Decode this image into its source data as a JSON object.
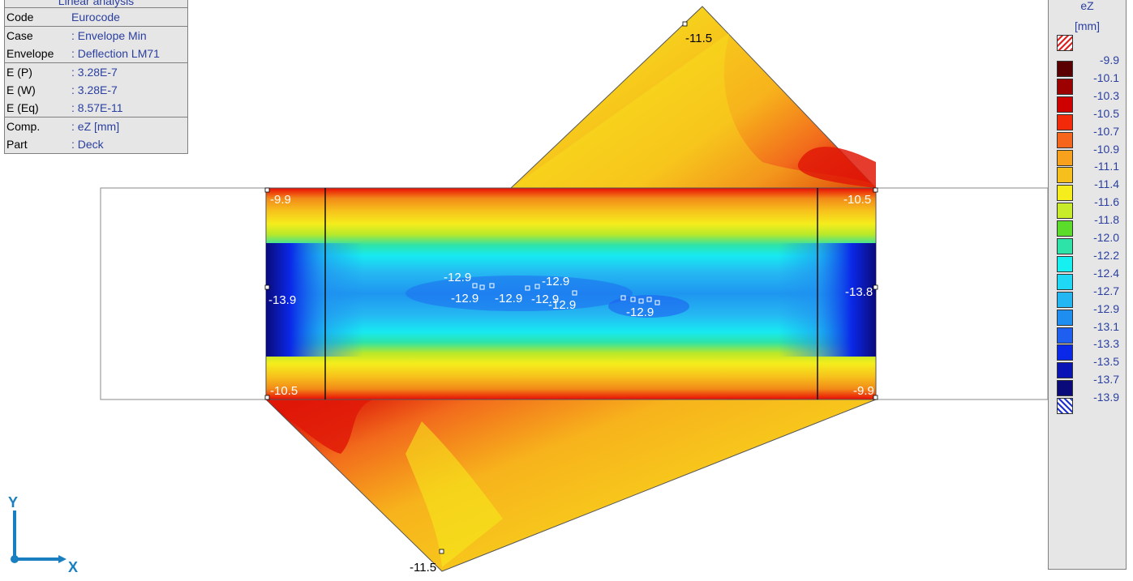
{
  "info_panel": {
    "title": "Linear analysis",
    "rows": [
      {
        "key": "Code",
        "value": "Eurocode"
      },
      {
        "key": "Case",
        "value": ": Envelope Min"
      },
      {
        "key": "Envelope",
        "value": ": Deflection LM71"
      },
      {
        "key": "E (P)",
        "value": ": 3.28E-7"
      },
      {
        "key": "E (W)",
        "value": ": 3.28E-7"
      },
      {
        "key": "E (Eq)",
        "value": ": 8.57E-11"
      },
      {
        "key": "Comp.",
        "value": ": eZ [mm]"
      },
      {
        "key": "Part",
        "value": ": Deck"
      }
    ]
  },
  "legend": {
    "title": "eZ",
    "unit": "[mm]",
    "entries": [
      {
        "value": "-9.9",
        "color": "#5a0000"
      },
      {
        "value": "-10.1",
        "color": "#9c0000"
      },
      {
        "value": "-10.3",
        "color": "#cf0000"
      },
      {
        "value": "-10.5",
        "color": "#f22a0a"
      },
      {
        "value": "-10.7",
        "color": "#f5651c"
      },
      {
        "value": "-10.9",
        "color": "#f7a11c"
      },
      {
        "value": "-11.1",
        "color": "#f7bf1c"
      },
      {
        "value": "-11.4",
        "color": "#f5ed1c"
      },
      {
        "value": "-11.6",
        "color": "#c8ec2a"
      },
      {
        "value": "-11.8",
        "color": "#5cdc2a"
      },
      {
        "value": "-12.0",
        "color": "#2ee3a8"
      },
      {
        "value": "-12.2",
        "color": "#17f0f0"
      },
      {
        "value": "-12.4",
        "color": "#1fd8f5"
      },
      {
        "value": "-12.7",
        "color": "#22b6f2"
      },
      {
        "value": "-12.9",
        "color": "#1e8ef0"
      },
      {
        "value": "-13.1",
        "color": "#1e5ff0"
      },
      {
        "value": "-13.3",
        "color": "#0a28e8"
      },
      {
        "value": "-13.5",
        "color": "#0a14b4"
      },
      {
        "value": "-13.7",
        "color": "#0a0a7a"
      }
    ],
    "min_label": "-13.9"
  },
  "plot_labels": {
    "top_tip": "-11.5",
    "bottom_tip": "-11.5",
    "rect_top_left": "-9.9",
    "rect_top_right": "-10.5",
    "rect_bottom_left": "-10.5",
    "rect_bottom_right": "-9.9",
    "rect_mid_left": "-13.9",
    "rect_mid_right": "-13.8",
    "center_a": "-12.9",
    "center_b": "-12.9",
    "center_c": "-12.9",
    "center_d": "-12.9",
    "center_e": "-12.9",
    "center_f": "-12.9",
    "cluster": "-12.9"
  },
  "axes": {
    "y_label": "Y",
    "x_label": "X"
  }
}
